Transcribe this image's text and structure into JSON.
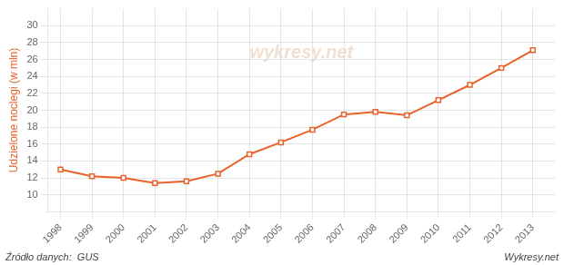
{
  "chart_data": {
    "type": "line",
    "x": [
      1998,
      1999,
      2000,
      2001,
      2002,
      2003,
      2004,
      2005,
      2006,
      2007,
      2008,
      2009,
      2010,
      2011,
      2012,
      2013
    ],
    "values": [
      13.0,
      12.2,
      12.0,
      11.4,
      11.6,
      12.5,
      14.8,
      16.2,
      17.7,
      19.5,
      19.8,
      19.4,
      21.2,
      23.0,
      25.0,
      27.1
    ],
    "color": "#E8622A",
    "marker": "square",
    "ylabel": "Udzielone noclegi (w mln)",
    "xlim": [
      1997.6,
      2013.7
    ],
    "xticks": [
      1998,
      1999,
      2000,
      2001,
      2002,
      2003,
      2004,
      2005,
      2006,
      2007,
      2008,
      2009,
      2010,
      2011,
      2012,
      2013
    ],
    "ylim": [
      8,
      32
    ],
    "yticks": [
      10,
      12,
      14,
      16,
      18,
      20,
      22,
      24,
      26,
      28,
      30
    ],
    "grid": true,
    "annotations": [
      "wykresy.net",
      "Źródło danych:  GUS",
      "Wykresy.net"
    ]
  }
}
